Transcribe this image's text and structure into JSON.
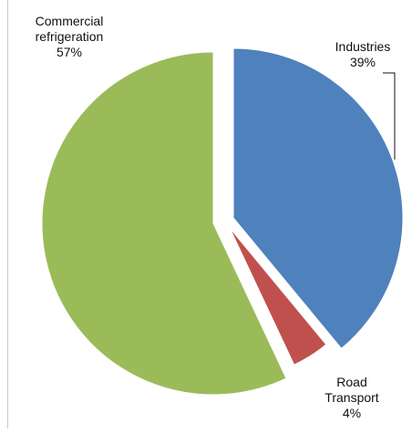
{
  "chart_data": {
    "type": "pie",
    "title": "",
    "unit": "%",
    "slices": [
      {
        "label": "Industries",
        "label_lines": [
          "Industries"
        ],
        "value": 39,
        "value_text": "39%",
        "color": "#4f81bd",
        "exploded": true
      },
      {
        "label": "Road Transport",
        "label_lines": [
          "Road",
          "Transport"
        ],
        "value": 4,
        "value_text": "4%",
        "color": "#c0504d",
        "exploded": true
      },
      {
        "label": "Commercial refrigeration",
        "label_lines": [
          "Commercial",
          "refrigeration"
        ],
        "value": 57,
        "value_text": "57%",
        "color": "#9bbb59",
        "exploded": true
      }
    ],
    "start_angle_deg": 0,
    "direction": "clockwise",
    "legend": "none",
    "labels": "outside with leader line for Industries"
  }
}
